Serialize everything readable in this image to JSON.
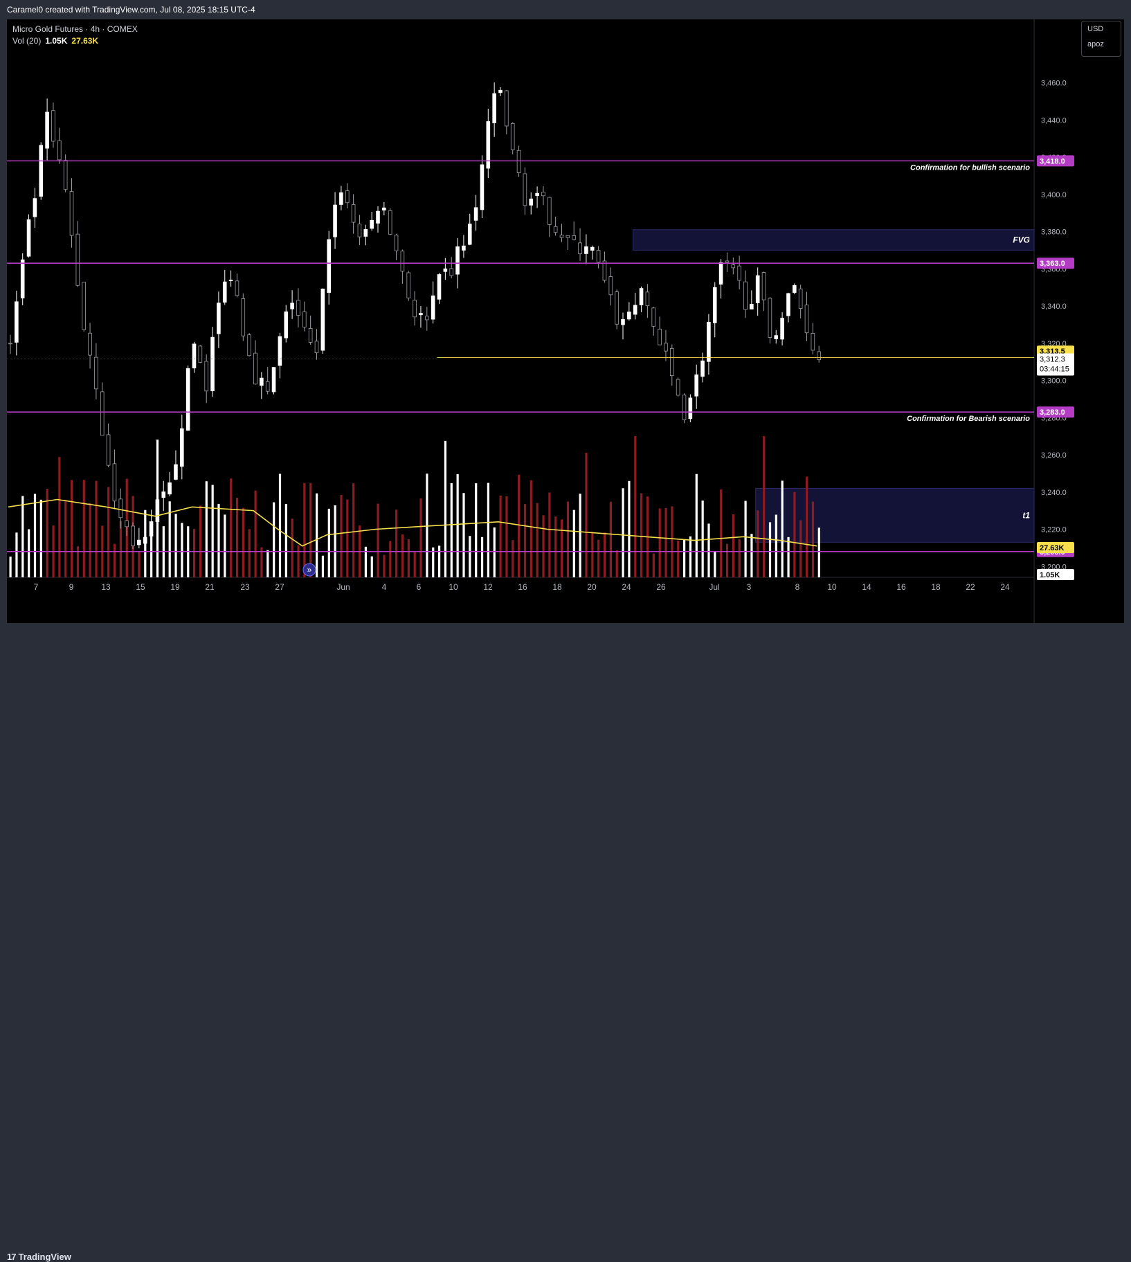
{
  "header": {
    "attribution": "Caramel0 created with TradingView.com, Jul 08, 2025 18:15 UTC-4"
  },
  "legend": {
    "symbol": "Micro Gold Futures · 4h · COMEX",
    "vol_label": "Vol (20)",
    "vol_value": "1.05K",
    "vol_ma": "27.63K"
  },
  "currency": {
    "unit": "USD",
    "scale_mode": "apoz"
  },
  "footer": {
    "brand": "TradingView"
  },
  "colors": {
    "level": "#b43cc4",
    "price": "#f7e04b",
    "bull_candle": "#ffffff",
    "bear_candle": "#9e9ea6",
    "vol_up": "#ffffff",
    "vol_down": "#8c1c22",
    "zone": "#14143a"
  },
  "chart_data": {
    "type": "candlestick",
    "ylim": [
      3195,
      3480
    ],
    "y_ticks": [
      3200,
      3220,
      3240,
      3260,
      3280,
      3300,
      3320,
      3340,
      3360,
      3380,
      3400,
      3420,
      3440,
      3460
    ],
    "x_ticks": [
      "7",
      "9",
      "13",
      "15",
      "19",
      "21",
      "23",
      "27",
      "Jun",
      "4",
      "6",
      "10",
      "12",
      "16",
      "18",
      "20",
      "24",
      "26",
      "Jul",
      "3",
      "8",
      "10",
      "14",
      "16",
      "18",
      "22",
      "24"
    ],
    "close_path": [
      [
        0,
        3320
      ],
      [
        3,
        3380
      ],
      [
        6,
        3440
      ],
      [
        9,
        3400
      ],
      [
        12,
        3330
      ],
      [
        14,
        3300
      ],
      [
        16,
        3250
      ],
      [
        18,
        3225
      ],
      [
        20,
        3215
      ],
      [
        22,
        3210
      ],
      [
        24,
        3230
      ],
      [
        26,
        3240
      ],
      [
        28,
        3280
      ],
      [
        30,
        3320
      ],
      [
        32,
        3300
      ],
      [
        34,
        3340
      ],
      [
        36,
        3360
      ],
      [
        38,
        3330
      ],
      [
        40,
        3305
      ],
      [
        42,
        3290
      ],
      [
        44,
        3320
      ],
      [
        46,
        3345
      ],
      [
        48,
        3325
      ],
      [
        50,
        3310
      ],
      [
        52,
        3380
      ],
      [
        54,
        3405
      ],
      [
        56,
        3385
      ],
      [
        58,
        3375
      ],
      [
        60,
        3395
      ],
      [
        62,
        3380
      ],
      [
        64,
        3360
      ],
      [
        66,
        3335
      ],
      [
        68,
        3330
      ],
      [
        70,
        3350
      ],
      [
        72,
        3360
      ],
      [
        74,
        3375
      ],
      [
        76,
        3390
      ],
      [
        78,
        3440
      ],
      [
        80,
        3455
      ],
      [
        82,
        3420
      ],
      [
        84,
        3400
      ],
      [
        86,
        3395
      ],
      [
        88,
        3390
      ],
      [
        90,
        3380
      ],
      [
        92,
        3370
      ],
      [
        94,
        3375
      ],
      [
        96,
        3360
      ],
      [
        98,
        3340
      ],
      [
        100,
        3330
      ],
      [
        102,
        3345
      ],
      [
        104,
        3340
      ],
      [
        106,
        3320
      ],
      [
        108,
        3300
      ],
      [
        110,
        3285
      ],
      [
        112,
        3300
      ],
      [
        114,
        3330
      ],
      [
        116,
        3360
      ],
      [
        118,
        3355
      ],
      [
        120,
        3345
      ],
      [
        122,
        3350
      ],
      [
        124,
        3325
      ],
      [
        126,
        3335
      ],
      [
        128,
        3350
      ],
      [
        130,
        3330
      ],
      [
        132,
        3312
      ]
    ],
    "volume_ma_path": [
      [
        0,
        3232
      ],
      [
        8,
        3236
      ],
      [
        16,
        3232
      ],
      [
        24,
        3227
      ],
      [
        30,
        3232
      ],
      [
        40,
        3230
      ],
      [
        44,
        3220
      ],
      [
        48,
        3211
      ],
      [
        52,
        3217
      ],
      [
        60,
        3220
      ],
      [
        70,
        3222
      ],
      [
        80,
        3224
      ],
      [
        88,
        3220
      ],
      [
        96,
        3218
      ],
      [
        104,
        3216
      ],
      [
        112,
        3214
      ],
      [
        120,
        3216
      ],
      [
        126,
        3214
      ],
      [
        132,
        3211
      ]
    ],
    "levels": [
      {
        "price": 3418.0,
        "label": "3,418.0",
        "note": "Confirmation for bullish scenario"
      },
      {
        "price": 3363.0,
        "label": "3,363.0",
        "note": ""
      },
      {
        "price": 3283.0,
        "label": "3,283.0",
        "note": "Confirmation for Bearish scenario"
      },
      {
        "price": 3208.0,
        "label": "3,208.0",
        "note": ""
      }
    ],
    "zones": [
      {
        "label": "FVG",
        "x_from": 102,
        "x_to": 190,
        "top": 3381,
        "bottom": 3370
      },
      {
        "label": "t1",
        "x_from": 122,
        "x_to": 190,
        "top": 3242,
        "bottom": 3213
      }
    ],
    "last_price": {
      "label": "3,313.5",
      "value": 3313.5
    },
    "current": {
      "price": "3,312.3",
      "countdown": "03:44:15",
      "value": 3312.3
    },
    "volume_tags": {
      "ma": "27.63K",
      "last": "1.05K"
    }
  }
}
